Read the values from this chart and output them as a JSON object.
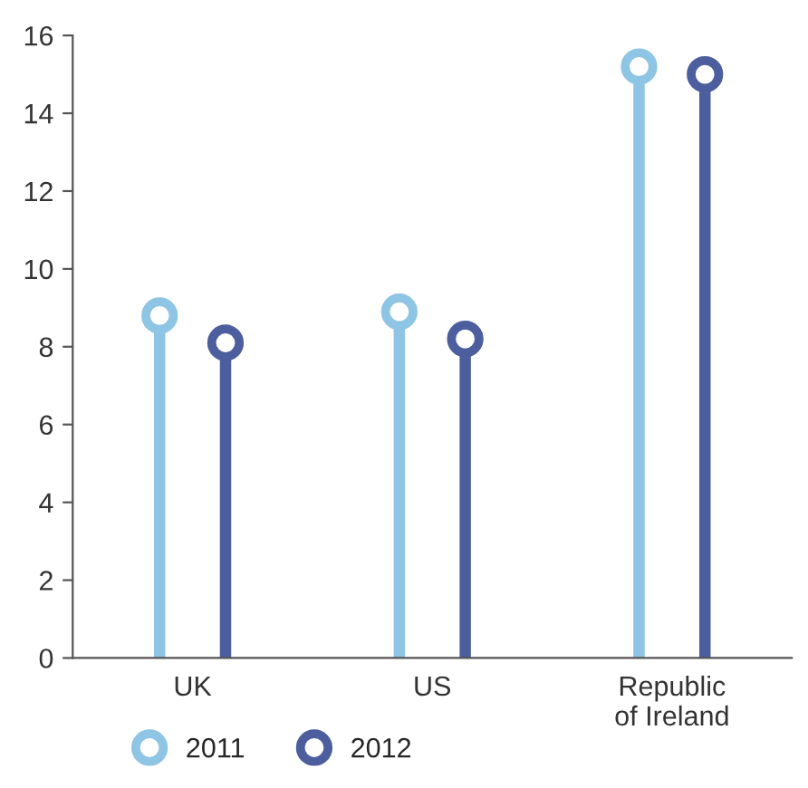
{
  "chart_data": {
    "type": "lollipop",
    "categories": [
      "UK",
      "US",
      "Republic\nof Ireland"
    ],
    "series": [
      {
        "name": "2011",
        "color": "#8ec4e4",
        "values": [
          8.8,
          8.9,
          15.2
        ]
      },
      {
        "name": "2012",
        "color": "#4d5e9e",
        "values": [
          8.1,
          8.2,
          15.0
        ]
      }
    ],
    "ylim": [
      0,
      16
    ],
    "yticks": [
      0,
      2,
      4,
      6,
      8,
      10,
      12,
      14,
      16
    ],
    "grid": false,
    "legend": "bottom left",
    "marker": "circle"
  }
}
